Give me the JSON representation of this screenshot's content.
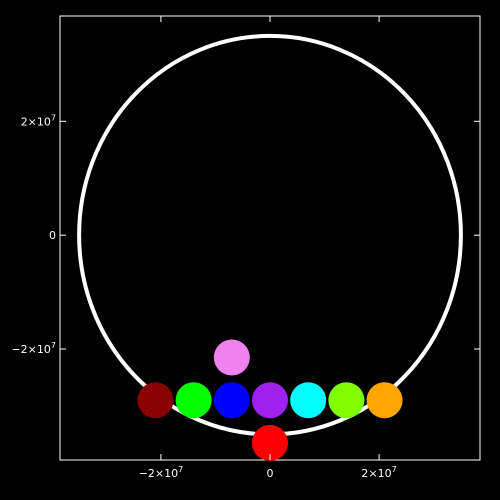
{
  "chart_data": {
    "type": "scatter",
    "title": "",
    "xlabel": "",
    "ylabel": "",
    "xlim": [
      -38500000.0,
      38500000.0
    ],
    "ylim": [
      -39500000.0,
      38500000.0
    ],
    "grid": false,
    "colors": {
      "background": "#000000",
      "axes": "#ffffff",
      "ring": "#ffffff"
    },
    "xticks": [
      {
        "value": -20000000.0,
        "mantissa": "−2×10",
        "exp": "7"
      },
      {
        "value": 0,
        "mantissa": "0",
        "exp": ""
      },
      {
        "value": 20000000.0,
        "mantissa": "2×10",
        "exp": "7"
      }
    ],
    "yticks": [
      {
        "value": 20000000.0,
        "mantissa": "2×10",
        "exp": "7"
      },
      {
        "value": 0,
        "mantissa": "0",
        "exp": ""
      },
      {
        "value": -20000000.0,
        "mantissa": "−2×10",
        "exp": "7"
      }
    ],
    "ring": {
      "cx": 0,
      "cy": 0,
      "r": 35000000.0
    },
    "points": [
      {
        "x": -21000000.0,
        "y": -29000000.0,
        "r": 3300000.0,
        "color": "#8b0000"
      },
      {
        "x": -14000000.0,
        "y": -29000000.0,
        "r": 3300000.0,
        "color": "#00ff00"
      },
      {
        "x": -7000000.0,
        "y": -29000000.0,
        "r": 3300000.0,
        "color": "#0000ff"
      },
      {
        "x": 0,
        "y": -29000000.0,
        "r": 3300000.0,
        "color": "#a020f0"
      },
      {
        "x": 7000000.0,
        "y": -29000000.0,
        "r": 3300000.0,
        "color": "#00ffff"
      },
      {
        "x": 14000000.0,
        "y": -29000000.0,
        "r": 3300000.0,
        "color": "#7fff00"
      },
      {
        "x": 21000000.0,
        "y": -29000000.0,
        "r": 3300000.0,
        "color": "#ffa500"
      },
      {
        "x": -7000000.0,
        "y": -21500000.0,
        "r": 3300000.0,
        "color": "#ee82ee"
      },
      {
        "x": 0,
        "y": -36500000.0,
        "r": 3300000.0,
        "color": "#ff0000"
      }
    ]
  }
}
